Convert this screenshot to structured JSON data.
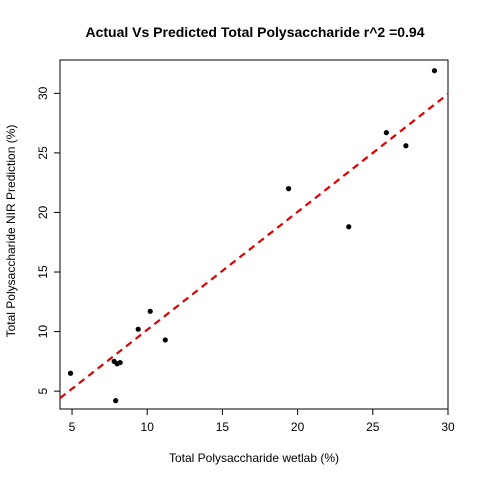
{
  "chart_data": {
    "type": "scatter",
    "title": "Actual Vs Predicted Total Polysaccharide r^2 =0.94",
    "xlabel": "Total Polysaccharide wetlab (%)",
    "ylabel": "Total Polysaccharide NIR Prediction (%)",
    "xlim": [
      4.2,
      30.0
    ],
    "ylim": [
      3.5,
      32.8
    ],
    "x_ticks": [
      5,
      10,
      15,
      20,
      25,
      30
    ],
    "y_ticks": [
      5,
      10,
      15,
      20,
      25,
      30
    ],
    "points": [
      {
        "x": 4.9,
        "y": 6.5
      },
      {
        "x": 7.8,
        "y": 7.5
      },
      {
        "x": 8.0,
        "y": 7.3
      },
      {
        "x": 8.2,
        "y": 7.4
      },
      {
        "x": 7.9,
        "y": 4.2
      },
      {
        "x": 9.4,
        "y": 10.2
      },
      {
        "x": 10.2,
        "y": 11.7
      },
      {
        "x": 11.2,
        "y": 9.3
      },
      {
        "x": 19.4,
        "y": 22.0
      },
      {
        "x": 23.4,
        "y": 18.8
      },
      {
        "x": 25.9,
        "y": 26.7
      },
      {
        "x": 27.2,
        "y": 25.6
      },
      {
        "x": 29.1,
        "y": 31.9
      }
    ],
    "fit_line": {
      "intercept": 0.25,
      "slope": 0.99
    },
    "colors": {
      "points": "#000000",
      "fit_line": "#dd0000",
      "axes": "#000000"
    }
  }
}
